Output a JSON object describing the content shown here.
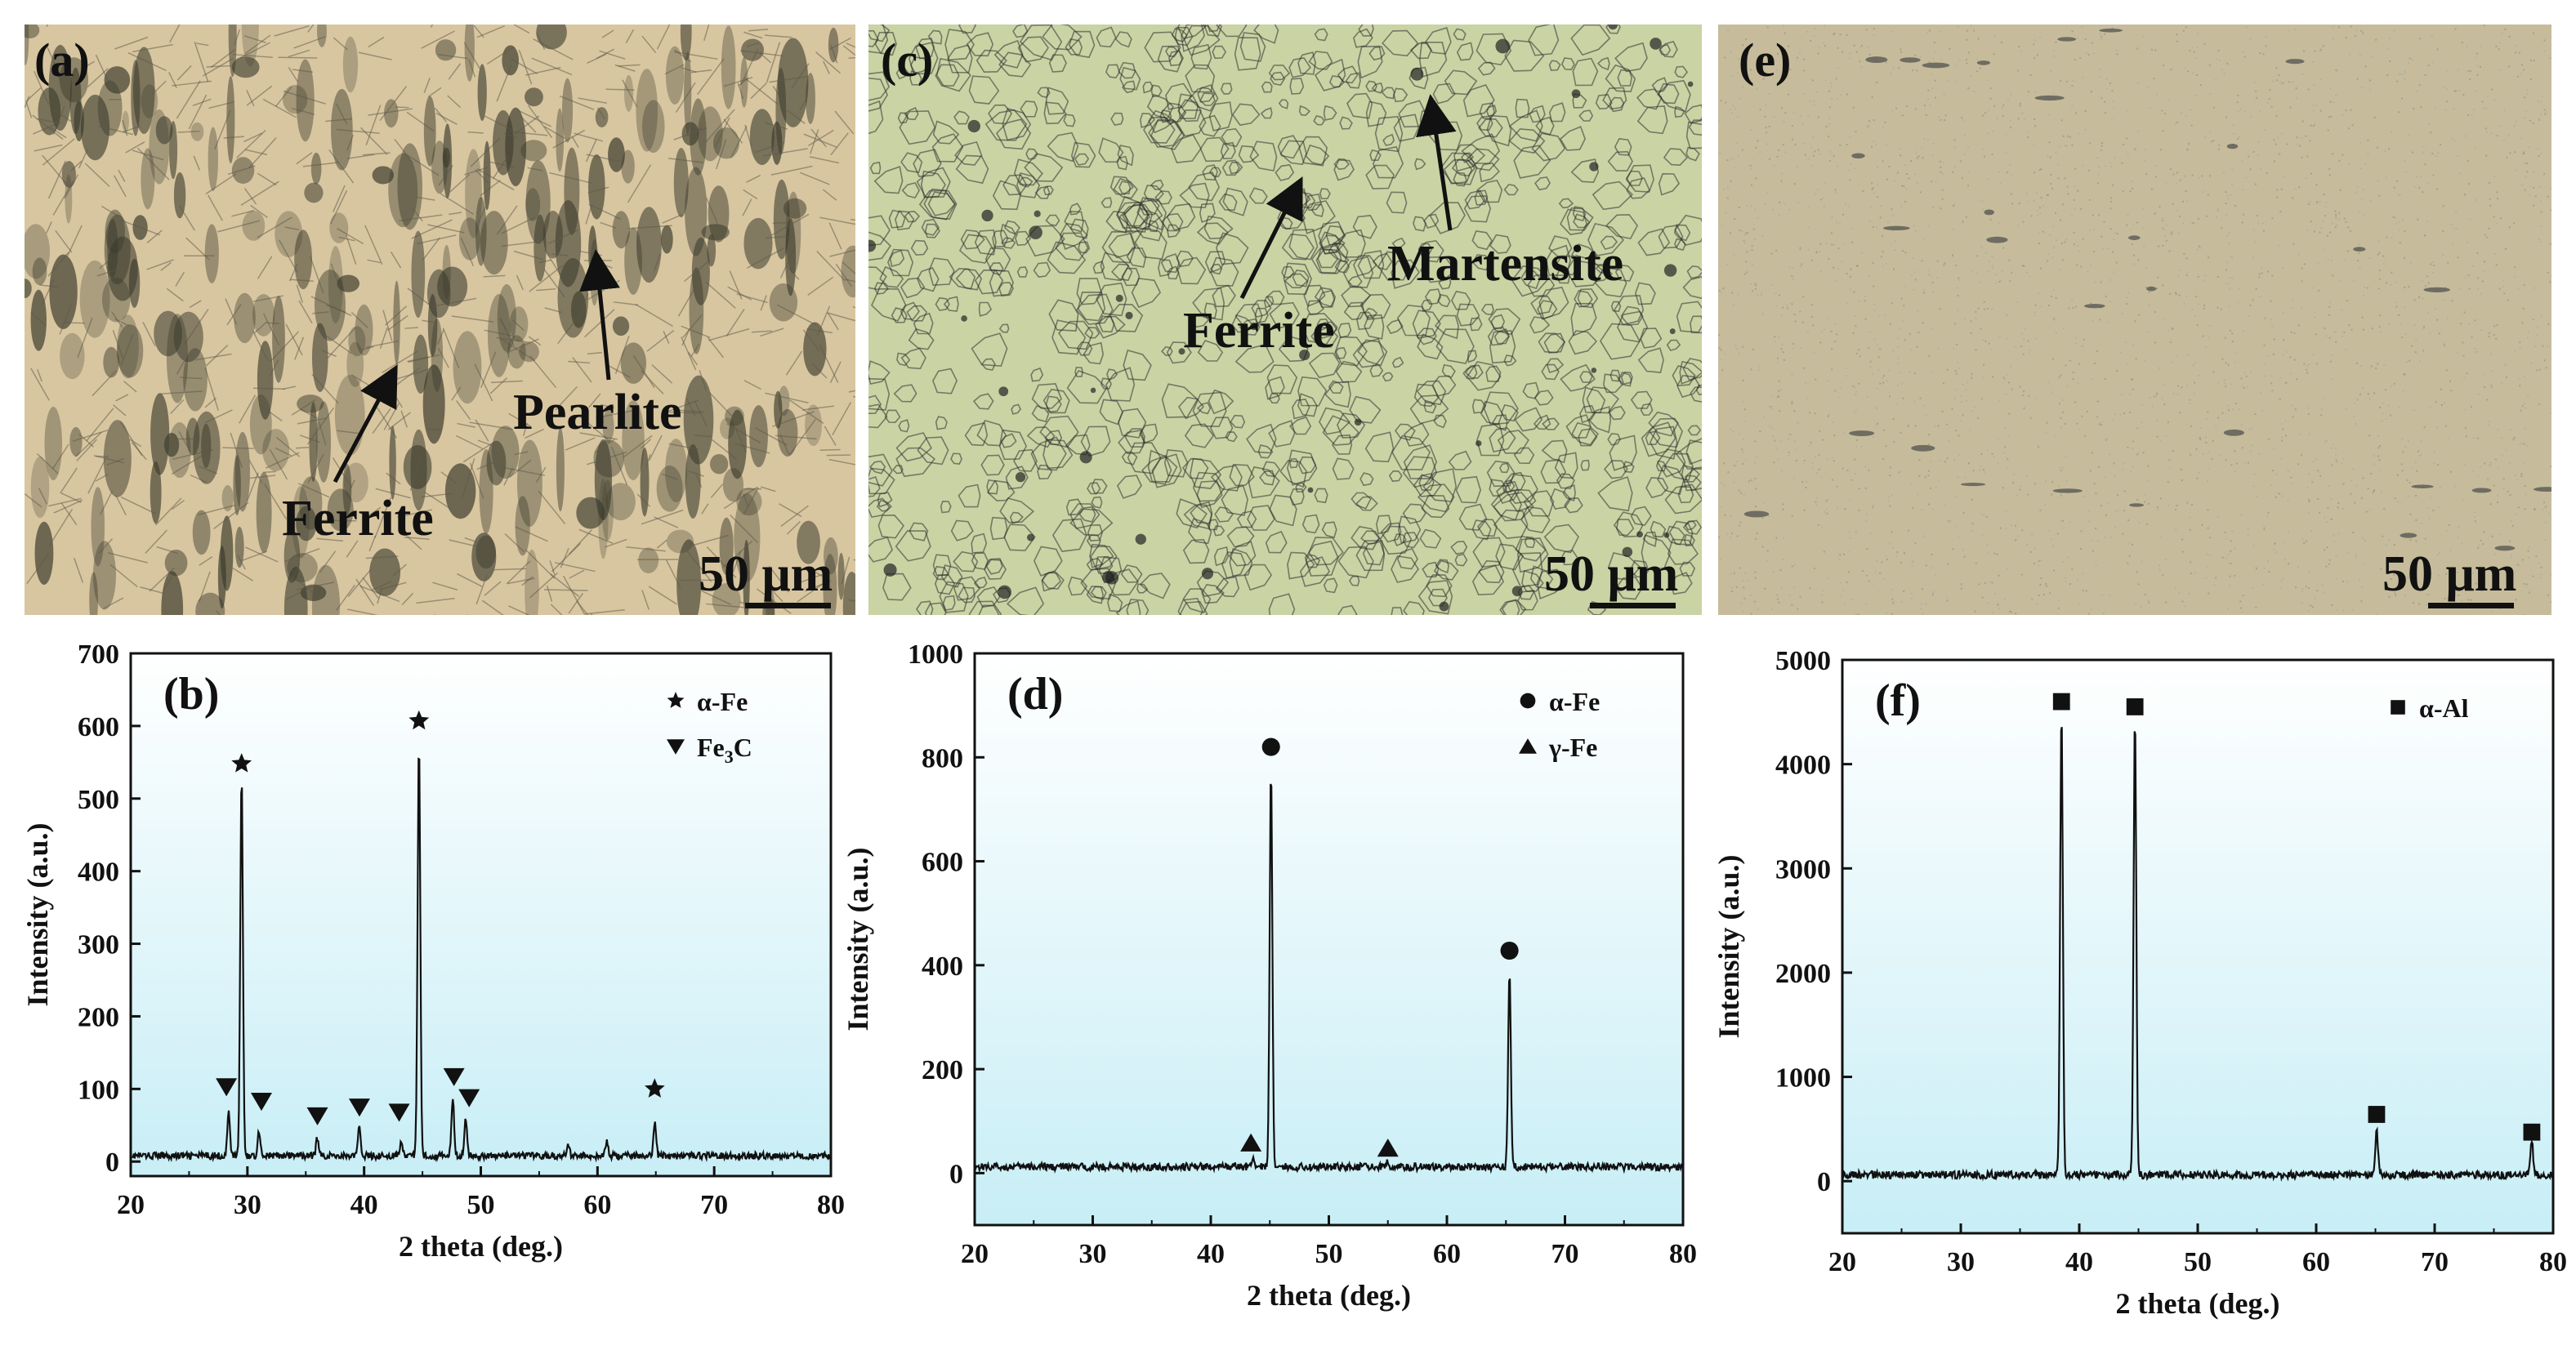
{
  "micrographs": [
    {
      "id": "a",
      "panel_label": "(a)",
      "scale_label": "50 μm",
      "annotations": [
        {
          "id": "pearlite",
          "text": "Pearlite"
        },
        {
          "id": "ferrite",
          "text": "Ferrite"
        }
      ],
      "colors": {
        "base": "#d8c6a0",
        "grain": "#3a3a2c"
      }
    },
    {
      "id": "c",
      "panel_label": "(c)",
      "scale_label": "50 μm",
      "annotations": [
        {
          "id": "martensite",
          "text": "Martensite"
        },
        {
          "id": "ferrite",
          "text": "Ferrite"
        }
      ],
      "colors": {
        "base": "#c9d3a4",
        "grain": "#2d2d2d"
      }
    },
    {
      "id": "e",
      "panel_label": "(e)",
      "scale_label": "50 μm",
      "annotations": [],
      "colors": {
        "base": "#c6bc9c",
        "grain": "#4a4a4a"
      }
    }
  ],
  "chart_data": [
    {
      "type": "line",
      "panel_label": "(b)",
      "xlabel": "2 theta (deg.)",
      "ylabel": "Intensity (a.u.)",
      "xlim": [
        20,
        80
      ],
      "ylim": [
        -20,
        700
      ],
      "xticks": [
        20,
        30,
        40,
        50,
        60,
        70,
        80
      ],
      "yticks": [
        0,
        100,
        200,
        300,
        400,
        500,
        600,
        700
      ],
      "background_gradient": [
        "#ffffff",
        "#c8eef6"
      ],
      "series": [
        {
          "baseline": 8,
          "peaks": [
            {
              "x": 28.4,
              "y": 60
            },
            {
              "x": 29.5,
              "y": 525
            },
            {
              "x": 31.0,
              "y": 35
            },
            {
              "x": 36.0,
              "y": 25
            },
            {
              "x": 39.6,
              "y": 40
            },
            {
              "x": 43.2,
              "y": 18
            },
            {
              "x": 44.7,
              "y": 575
            },
            {
              "x": 47.6,
              "y": 80
            },
            {
              "x": 48.7,
              "y": 50
            },
            {
              "x": 57.5,
              "y": 15
            },
            {
              "x": 60.8,
              "y": 18
            },
            {
              "x": 64.9,
              "y": 45
            }
          ]
        }
      ],
      "phases": [
        {
          "name": "α-Fe",
          "marker": "star",
          "positions": [
            {
              "x": 29.5,
              "y": 548
            },
            {
              "x": 44.7,
              "y": 607
            },
            {
              "x": 64.9,
              "y": 100
            }
          ]
        },
        {
          "name": "Fe3C",
          "marker": "triangle-down",
          "positions": [
            {
              "x": 28.2,
              "y": 103
            },
            {
              "x": 31.2,
              "y": 83
            },
            {
              "x": 36.0,
              "y": 63
            },
            {
              "x": 39.6,
              "y": 75
            },
            {
              "x": 43.0,
              "y": 68
            },
            {
              "x": 47.7,
              "y": 117
            },
            {
              "x": 49.0,
              "y": 88
            }
          ]
        }
      ],
      "legend": {
        "position": "top-right",
        "labels": [
          "α-Fe",
          "Fe"
        ],
        "subscript": [
          "",
          "3"
        ],
        "suffix": [
          "",
          "C"
        ]
      }
    },
    {
      "type": "line",
      "panel_label": "(d)",
      "xlabel": "2 theta (deg.)",
      "ylabel": "Intensity (a.u.)",
      "xlim": [
        20,
        80
      ],
      "ylim": [
        -100,
        1000
      ],
      "xticks": [
        20,
        30,
        40,
        50,
        60,
        70,
        80
      ],
      "yticks": [
        0,
        200,
        400,
        600,
        800,
        1000
      ],
      "background_gradient": [
        "#ffffff",
        "#c8eef6"
      ],
      "series": [
        {
          "baseline": 12,
          "peaks": [
            {
              "x": 43.6,
              "y": 18
            },
            {
              "x": 45.1,
              "y": 770
            },
            {
              "x": 54.9,
              "y": 10
            },
            {
              "x": 65.3,
              "y": 375
            }
          ]
        }
      ],
      "phases": [
        {
          "name": "α-Fe",
          "marker": "circle",
          "positions": [
            {
              "x": 45.1,
              "y": 820
            },
            {
              "x": 65.3,
              "y": 428
            }
          ]
        },
        {
          "name": "γ-Fe",
          "marker": "triangle-up",
          "positions": [
            {
              "x": 43.4,
              "y": 58
            },
            {
              "x": 55.0,
              "y": 48
            }
          ]
        }
      ],
      "legend": {
        "position": "top-right",
        "labels": [
          "α-Fe",
          "γ-Fe"
        ],
        "subscript": [
          "",
          ""
        ],
        "suffix": [
          "",
          ""
        ]
      }
    },
    {
      "type": "line",
      "panel_label": "(f)",
      "xlabel": "2 theta (deg.)",
      "ylabel": "Intensity (a.u.)",
      "xlim": [
        20,
        80
      ],
      "ylim": [
        -500,
        5000
      ],
      "xticks": [
        20,
        30,
        40,
        50,
        60,
        70,
        80
      ],
      "yticks": [
        0,
        1000,
        2000,
        3000,
        4000,
        5000
      ],
      "background_gradient": [
        "#ffffff",
        "#c8eef6"
      ],
      "series": [
        {
          "baseline": 60,
          "peaks": [
            {
              "x": 38.5,
              "y": 4480
            },
            {
              "x": 44.7,
              "y": 4420
            },
            {
              "x": 65.1,
              "y": 440
            },
            {
              "x": 78.2,
              "y": 310
            }
          ]
        }
      ],
      "phases": [
        {
          "name": "α-Al",
          "marker": "square",
          "positions": [
            {
              "x": 38.5,
              "y": 4600
            },
            {
              "x": 44.7,
              "y": 4550
            },
            {
              "x": 65.1,
              "y": 640
            },
            {
              "x": 78.2,
              "y": 470
            }
          ]
        }
      ],
      "legend": {
        "position": "top-right",
        "labels": [
          "α-Al"
        ],
        "subscript": [
          ""
        ],
        "suffix": [
          ""
        ]
      }
    }
  ]
}
